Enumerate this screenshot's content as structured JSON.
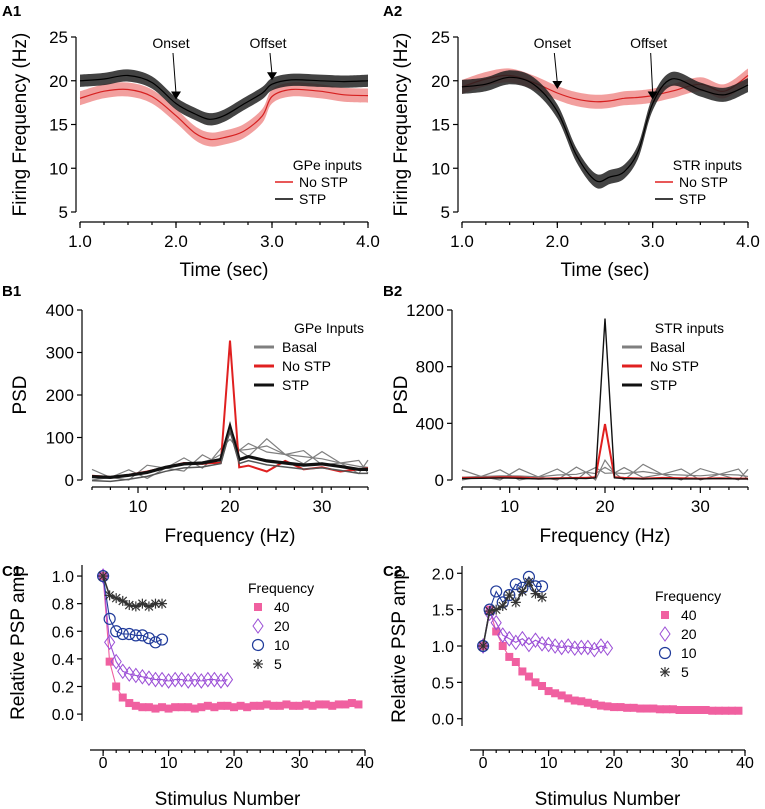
{
  "chart_data": [
    {
      "id": "A1",
      "type": "line",
      "xlabel": "Time (sec)",
      "ylabel": "Firing Frequency (Hz)",
      "xlim": [
        1.0,
        4.0
      ],
      "ylim": [
        5,
        25
      ],
      "xticks": [
        "1.0",
        "2.0",
        "3.0",
        "4.0"
      ],
      "yticks": [
        "5",
        "10",
        "15",
        "20",
        "25"
      ],
      "legend_title": "GPe inputs",
      "annotations": [
        {
          "text": "Onset",
          "x": 2.0
        },
        {
          "text": "Offset",
          "x": 3.0
        }
      ],
      "x": [
        1.0,
        1.25,
        1.5,
        1.75,
        2.0,
        2.2,
        2.35,
        2.5,
        2.7,
        2.9,
        3.0,
        3.2,
        3.5,
        3.75,
        4.0
      ],
      "series": [
        {
          "name": "No STP",
          "color": "#e8504f",
          "band": 0.8,
          "values": [
            18.0,
            18.8,
            19.0,
            18.2,
            16.0,
            14.0,
            13.3,
            13.5,
            14.2,
            16.0,
            18.2,
            19.0,
            18.8,
            18.4,
            18.3
          ]
        },
        {
          "name": "STP",
          "color": "#222222",
          "band": 0.7,
          "values": [
            20.0,
            20.2,
            20.6,
            19.8,
            17.4,
            16.2,
            15.6,
            16.0,
            17.3,
            18.6,
            19.6,
            20.1,
            20.0,
            19.9,
            20.0
          ]
        }
      ]
    },
    {
      "id": "A2",
      "type": "line",
      "xlabel": "Time (sec)",
      "ylabel": "Firing Frequency (Hz)",
      "xlim": [
        1.0,
        4.0
      ],
      "ylim": [
        5,
        25
      ],
      "xticks": [
        "1.0",
        "2.0",
        "3.0",
        "4.0"
      ],
      "yticks": [
        "5",
        "10",
        "15",
        "20",
        "25"
      ],
      "legend_title": "STR inputs",
      "annotations": [
        {
          "text": "Onset",
          "x": 2.0
        },
        {
          "text": "Offset",
          "x": 3.0
        }
      ],
      "x": [
        1.0,
        1.25,
        1.5,
        1.75,
        2.0,
        2.2,
        2.4,
        2.55,
        2.7,
        2.85,
        3.0,
        3.2,
        3.5,
        3.75,
        4.0
      ],
      "series": [
        {
          "name": "No STP",
          "color": "#e8504f",
          "band": 0.8,
          "values": [
            19.3,
            20.2,
            20.6,
            19.8,
            18.6,
            17.9,
            17.6,
            17.7,
            18.0,
            18.1,
            18.3,
            18.8,
            19.6,
            18.8,
            20.6
          ]
        },
        {
          "name": "STP",
          "color": "#222222",
          "band": 0.8,
          "values": [
            19.3,
            19.6,
            20.4,
            19.6,
            16.5,
            11.5,
            8.6,
            9.0,
            9.6,
            12.0,
            17.4,
            20.2,
            19.0,
            18.4,
            19.5
          ]
        }
      ]
    },
    {
      "id": "B1",
      "type": "line",
      "xlabel": "Frequency (Hz)",
      "ylabel": "PSD",
      "xlim": [
        5,
        35
      ],
      "ylim": [
        0,
        400
      ],
      "xticks": [
        "10",
        "20",
        "30"
      ],
      "yticks": [
        "0",
        "100",
        "200",
        "300",
        "400"
      ],
      "legend_title": "GPe Inputs",
      "x": [
        5,
        7,
        9,
        11,
        13,
        15,
        17,
        18,
        19,
        20,
        21,
        22,
        24,
        26,
        28,
        30,
        32,
        34,
        35
      ],
      "series": [
        {
          "name": "Basal",
          "color": "#7f7f7f",
          "values": [
            8,
            6,
            10,
            18,
            28,
            38,
            42,
            48,
            60,
            110,
            70,
            72,
            80,
            60,
            55,
            50,
            40,
            32,
            30
          ]
        },
        {
          "name": "No STP",
          "color": "#e02020",
          "values": [
            10,
            7,
            12,
            20,
            30,
            40,
            38,
            40,
            40,
            328,
            30,
            34,
            20,
            45,
            25,
            30,
            20,
            25,
            28
          ]
        },
        {
          "name": "STP",
          "color": "#111111",
          "values": [
            8,
            6,
            11,
            18,
            30,
            38,
            40,
            44,
            48,
            125,
            48,
            55,
            45,
            40,
            35,
            38,
            32,
            25,
            25
          ]
        }
      ]
    },
    {
      "id": "B2",
      "type": "line",
      "xlabel": "Frequency (Hz)",
      "ylabel": "PSD",
      "xlim": [
        5,
        35
      ],
      "ylim": [
        0,
        1200
      ],
      "xticks": [
        "10",
        "20",
        "30"
      ],
      "yticks": [
        "0",
        "400",
        "800",
        "1200"
      ],
      "legend_title": "STR inputs",
      "x": [
        5,
        7,
        9,
        11,
        13,
        15,
        17,
        18,
        19,
        20,
        21,
        22,
        24,
        26,
        28,
        30,
        32,
        34,
        35
      ],
      "series": [
        {
          "name": "Basal",
          "color": "#7f7f7f",
          "values": [
            20,
            25,
            30,
            28,
            22,
            35,
            40,
            55,
            45,
            90,
            50,
            45,
            60,
            40,
            35,
            30,
            40,
            35,
            25
          ]
        },
        {
          "name": "No STP",
          "color": "#e02020",
          "values": [
            15,
            15,
            20,
            18,
            10,
            12,
            15,
            15,
            20,
            395,
            20,
            15,
            10,
            15,
            12,
            10,
            12,
            10,
            10
          ]
        },
        {
          "name": "STP",
          "color": "#111111",
          "values": [
            10,
            12,
            15,
            12,
            8,
            10,
            12,
            10,
            15,
            1140,
            15,
            10,
            8,
            10,
            8,
            8,
            10,
            8,
            8
          ]
        }
      ]
    },
    {
      "id": "C1",
      "type": "scatter",
      "xlabel": "Stimulus Number",
      "ylabel": "Relative PSP amp",
      "xlim": [
        -2,
        40
      ],
      "ylim": [
        -0.05,
        1.08
      ],
      "xticks": [
        "0",
        "10",
        "20",
        "30",
        "40"
      ],
      "yticks": [
        "0.0",
        "0.2",
        "0.4",
        "0.6",
        "0.8",
        "1.0"
      ],
      "legend_title": "Frequency",
      "series": [
        {
          "name": "40",
          "color": "#f060a0",
          "marker": "square",
          "values": [
            1.0,
            0.38,
            0.2,
            0.12,
            0.08,
            0.06,
            0.05,
            0.05,
            0.04,
            0.05,
            0.04,
            0.05,
            0.05,
            0.05,
            0.04,
            0.05,
            0.06,
            0.05,
            0.06,
            0.06,
            0.05,
            0.06,
            0.05,
            0.06,
            0.06,
            0.07,
            0.06,
            0.06,
            0.07,
            0.06,
            0.06,
            0.07,
            0.06,
            0.07,
            0.07,
            0.06,
            0.07,
            0.07,
            0.08,
            0.07
          ]
        },
        {
          "name": "20",
          "color": "#9b4fd6",
          "marker": "diamond",
          "values": [
            1.0,
            0.52,
            0.38,
            0.31,
            0.29,
            0.28,
            0.27,
            0.26,
            0.25,
            0.25,
            0.24,
            0.25,
            0.25,
            0.24,
            0.25,
            0.24,
            0.25,
            0.25,
            0.24,
            0.25
          ]
        },
        {
          "name": "10",
          "color": "#1f3a9a",
          "marker": "circle",
          "values": [
            1.0,
            0.69,
            0.6,
            0.58,
            0.58,
            0.57,
            0.57,
            0.55,
            0.52,
            0.54
          ]
        },
        {
          "name": "5",
          "color": "#333333",
          "marker": "star",
          "values": [
            1.0,
            0.86,
            0.84,
            0.82,
            0.79,
            0.78,
            0.8,
            0.78,
            0.8,
            0.8
          ]
        }
      ]
    },
    {
      "id": "C2",
      "type": "scatter",
      "xlabel": "Stimulus Number",
      "ylabel": "Relative PSP amp",
      "xlim": [
        -2,
        40
      ],
      "ylim": [
        -0.1,
        2.1
      ],
      "xticks": [
        "0",
        "10",
        "20",
        "30",
        "40"
      ],
      "yticks": [
        "0.0",
        "0.5",
        "1.0",
        "1.5",
        "2.0"
      ],
      "legend_title": "Frequency",
      "series": [
        {
          "name": "40",
          "color": "#f060a0",
          "marker": "square",
          "values": [
            1.0,
            1.5,
            1.2,
            1.0,
            0.85,
            0.78,
            0.65,
            0.58,
            0.5,
            0.45,
            0.38,
            0.35,
            0.32,
            0.28,
            0.25,
            0.24,
            0.22,
            0.2,
            0.18,
            0.17,
            0.16,
            0.16,
            0.15,
            0.15,
            0.14,
            0.14,
            0.14,
            0.13,
            0.13,
            0.13,
            0.12,
            0.12,
            0.12,
            0.12,
            0.12,
            0.11,
            0.11,
            0.11,
            0.11,
            0.11
          ]
        },
        {
          "name": "20",
          "color": "#9b4fd6",
          "marker": "diamond",
          "values": [
            1.0,
            1.45,
            1.32,
            1.15,
            1.1,
            1.05,
            1.1,
            1.02,
            1.08,
            1.03,
            1.02,
            1.0,
            0.98,
            1.0,
            0.97,
            0.98,
            0.98,
            0.95,
            1.0,
            0.97
          ]
        },
        {
          "name": "10",
          "color": "#1f3a9a",
          "marker": "circle",
          "values": [
            1.0,
            1.5,
            1.75,
            1.6,
            1.7,
            1.85,
            1.8,
            1.95,
            1.82,
            1.82
          ]
        },
        {
          "name": "5",
          "color": "#333333",
          "marker": "star",
          "values": [
            1.0,
            1.48,
            1.5,
            1.55,
            1.7,
            1.6,
            1.75,
            1.88,
            1.72,
            1.67
          ]
        }
      ]
    }
  ]
}
